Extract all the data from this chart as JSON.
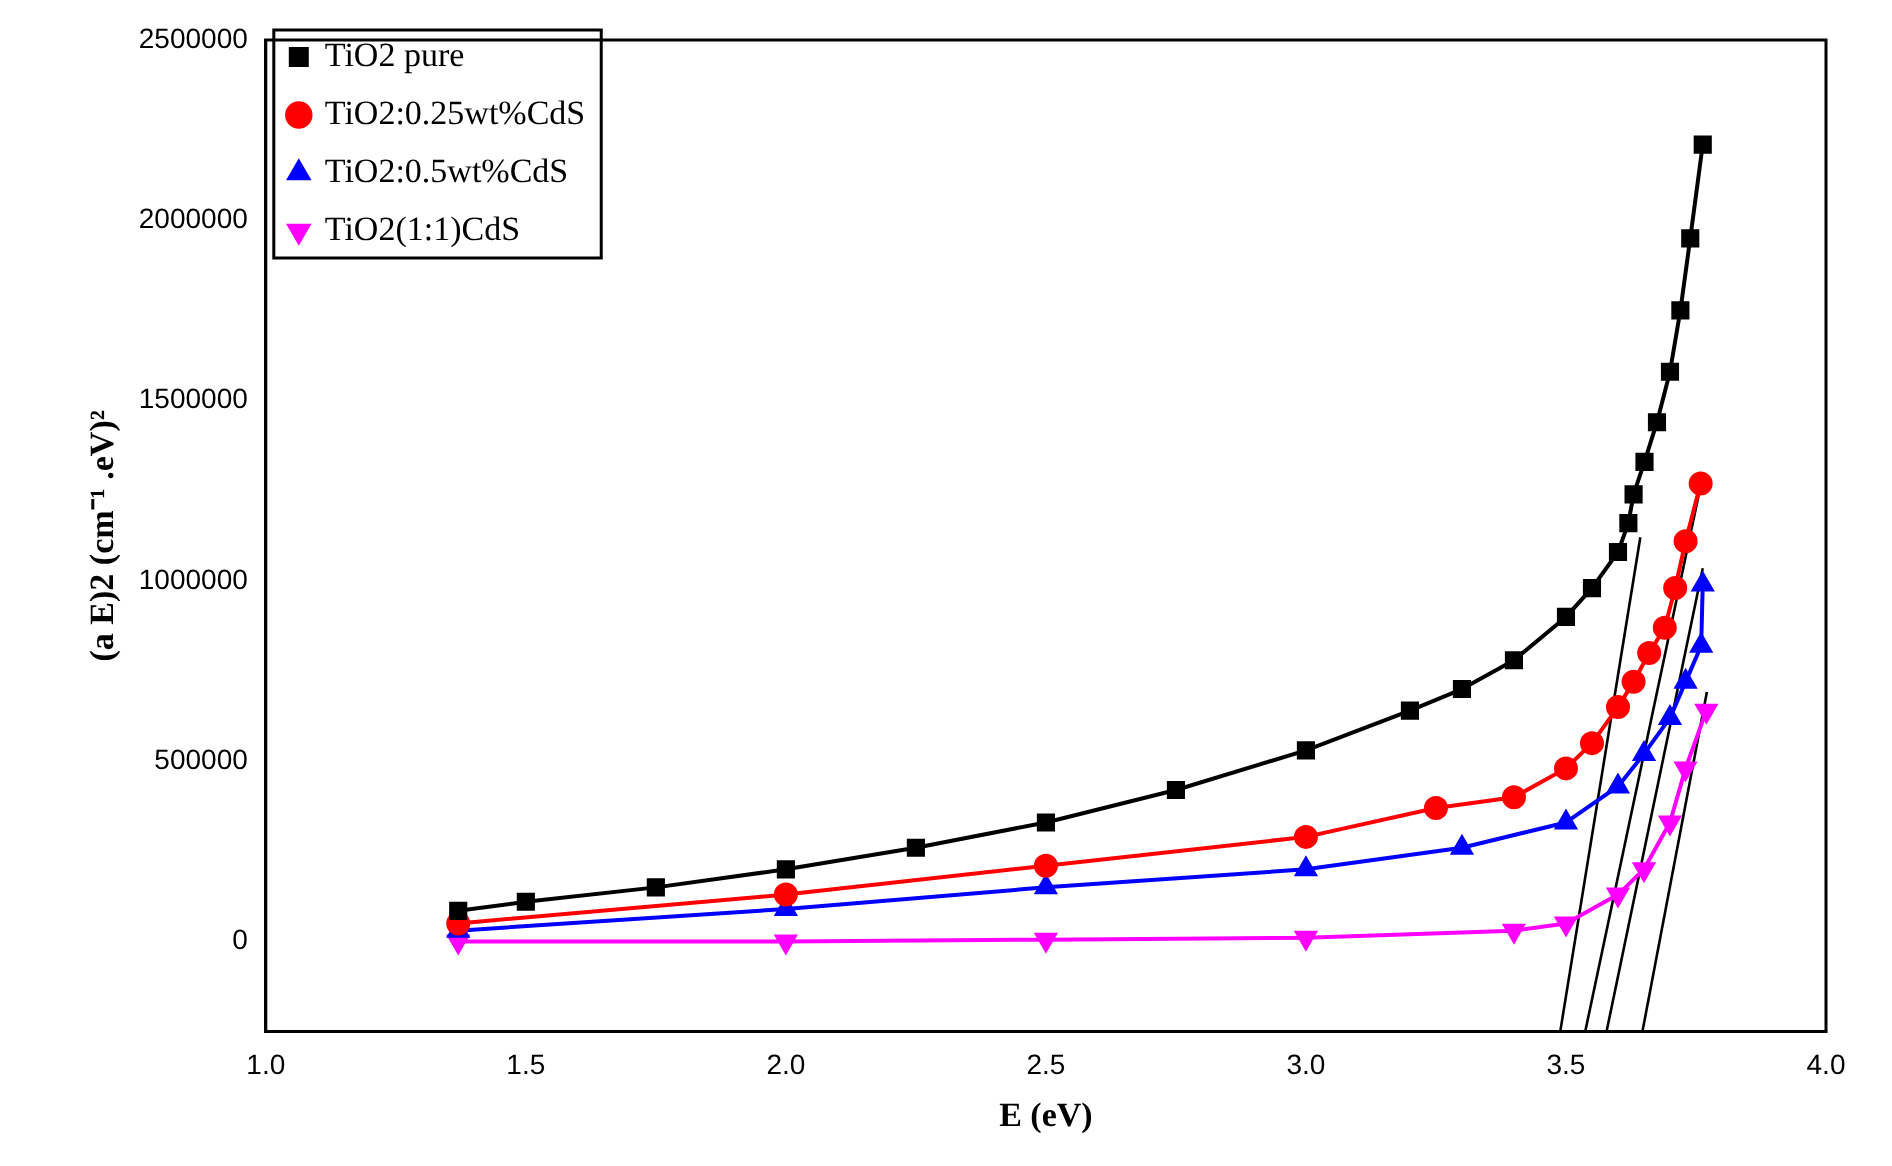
{
  "chart_data": {
    "type": "line",
    "xlabel": "E (eV)",
    "ylabel": "(a E)2 (cm⁻¹ .eV)²",
    "xlim": [
      1.0,
      4.0
    ],
    "xticks": [
      {
        "value": 1,
        "label": "1.0"
      },
      {
        "value": 1.5,
        "label": "1.5"
      },
      {
        "value": 2,
        "label": "2.0"
      },
      {
        "value": 2.5,
        "label": "2.5"
      },
      {
        "value": 3,
        "label": "3.0"
      },
      {
        "value": 3.5,
        "label": "3.5"
      },
      {
        "value": 4,
        "label": "4.0"
      }
    ],
    "ylim": [
      -250000,
      2500000
    ],
    "yticks": [
      0,
      500000,
      1000000,
      1500000,
      2000000,
      2500000
    ],
    "grid": false,
    "legend": "top left",
    "series": [
      {
        "name": "TiO2 pure",
        "color": "#000000",
        "marker": "square",
        "x": [
          1.37,
          1.5,
          1.75,
          2.0,
          2.25,
          2.5,
          2.75,
          3.0,
          3.2,
          3.3,
          3.4,
          3.5,
          3.55,
          3.6,
          3.62,
          3.63,
          3.651,
          3.675,
          3.7,
          3.72,
          3.739,
          3.763
        ],
        "values": [
          85000,
          110000,
          150000,
          200000,
          260000,
          330000,
          420000,
          530000,
          640000,
          700000,
          780000,
          900000,
          980000,
          1080000,
          1160000,
          1240000,
          1330000,
          1440000,
          1580000,
          1750000,
          1950000,
          2210000
        ]
      },
      {
        "name": "TiO2:0.25wt%CdS",
        "color": "#ff0000",
        "marker": "circle",
        "x": [
          1.37,
          2.0,
          2.5,
          3.0,
          3.25,
          3.4,
          3.5,
          3.55,
          3.6,
          3.63,
          3.66,
          3.69,
          3.71,
          3.73,
          3.759
        ],
        "values": [
          50000,
          130000,
          210000,
          290000,
          370000,
          400000,
          480000,
          550000,
          650000,
          720000,
          800000,
          870000,
          980000,
          1110000,
          1270000
        ]
      },
      {
        "name": "TiO2:0.5wt%CdS",
        "color": "#0000ff",
        "marker": "triangle",
        "x": [
          1.37,
          2.0,
          2.5,
          3.0,
          3.3,
          3.5,
          3.6,
          3.65,
          3.7,
          3.73,
          3.76,
          3.763
        ],
        "values": [
          30000,
          90000,
          150000,
          200000,
          260000,
          330000,
          430000,
          520000,
          620000,
          720000,
          820000,
          990000
        ]
      },
      {
        "name": "TiO2(1:1)CdS",
        "color": "#ff00ff",
        "marker": "triangle-down",
        "x": [
          1.37,
          2.0,
          2.5,
          3.0,
          3.4,
          3.5,
          3.6,
          3.65,
          3.7,
          3.73,
          3.77
        ],
        "values": [
          0,
          0,
          5000,
          10000,
          30000,
          50000,
          130000,
          200000,
          330000,
          480000,
          640000
        ]
      },
      {
        "color": "#000000",
        "marker": "none",
        "x": [
          3.489,
          3.643
        ],
        "values": [
          -250000,
          1121000
        ]
      },
      {
        "color": "#000000",
        "marker": "none",
        "x": [
          3.537,
          3.759
        ],
        "values": [
          -250000,
          1264000
        ]
      },
      {
        "color": "#000000",
        "marker": "none",
        "x": [
          3.578,
          3.763
        ],
        "values": [
          -250000,
          1035000
        ]
      },
      {
        "color": "#000000",
        "marker": "none",
        "x": [
          3.647,
          3.771
        ],
        "values": [
          -250000,
          692000
        ]
      }
    ]
  }
}
